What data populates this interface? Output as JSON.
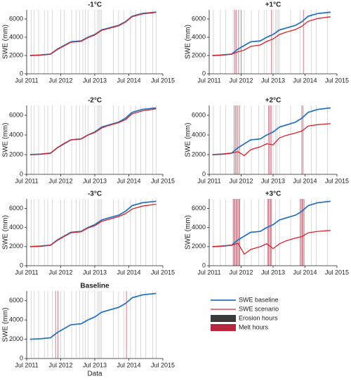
{
  "chart_data": [
    {
      "type": "line",
      "title": "-1°C",
      "ylabel": "SWE (mm)",
      "x": [
        2011.6,
        2011.9,
        2012.2,
        2012.4,
        2012.6,
        2012.8,
        2013.1,
        2013.3,
        2013.5,
        2013.7,
        2013.9,
        2014.2,
        2014.4,
        2014.6,
        2014.9,
        2015.3
      ],
      "baseline": [
        2000,
        2050,
        2150,
        2700,
        3100,
        3500,
        3600,
        4000,
        4300,
        4800,
        5000,
        5300,
        5700,
        6300,
        6600,
        6750
      ],
      "scenario": [
        2000,
        2050,
        2150,
        2650,
        3050,
        3450,
        3550,
        3950,
        4250,
        4750,
        4950,
        5250,
        5650,
        6250,
        6550,
        6720
      ],
      "erosion_hours": [
        2011.63,
        2011.72,
        2011.85,
        2012.02,
        2012.12,
        2012.25,
        2012.5,
        2012.6,
        2012.82,
        2012.95,
        2013.05,
        2013.15,
        2013.22,
        2013.3,
        2013.5,
        2013.58,
        2013.62,
        2013.66,
        2013.7,
        2014.05,
        2014.2,
        2014.35,
        2014.55,
        2014.7,
        2014.85,
        2015.0,
        2015.2,
        2015.3
      ],
      "melt_hours": [],
      "xlim": [
        2011.5,
        2015.5
      ],
      "ylim": [
        0,
        7000
      ],
      "yticks": [
        0,
        2000,
        4000,
        6000
      ],
      "xticks": [
        {
          "value": 2011.5,
          "label": "Jul 2011"
        },
        {
          "value": 2012.5,
          "label": "Jul 2012"
        },
        {
          "value": 2013.5,
          "label": "Jul 2013"
        },
        {
          "value": 2014.5,
          "label": "Jul 2014"
        },
        {
          "value": 2015.5,
          "label": "Jul 2015"
        }
      ]
    },
    {
      "type": "line",
      "title": "+1°C",
      "ylabel": "SWE (mm)",
      "x": [
        2011.6,
        2011.9,
        2012.2,
        2012.4,
        2012.6,
        2012.8,
        2013.1,
        2013.3,
        2013.5,
        2013.7,
        2013.9,
        2014.2,
        2014.4,
        2014.6,
        2014.9,
        2015.3
      ],
      "baseline": [
        2000,
        2050,
        2150,
        2700,
        3100,
        3500,
        3600,
        4000,
        4300,
        4800,
        5000,
        5300,
        5700,
        6300,
        6600,
        6750
      ],
      "scenario": [
        2000,
        2050,
        2150,
        2400,
        2600,
        3000,
        3150,
        3550,
        3800,
        4300,
        4550,
        4850,
        5200,
        5750,
        6050,
        6250
      ],
      "erosion_hours": [
        2011.63,
        2011.85,
        2012.02,
        2012.25,
        2012.6,
        2012.82,
        2013.05,
        2013.22,
        2013.3,
        2013.5,
        2013.58,
        2013.62,
        2013.66,
        2013.7,
        2014.05,
        2014.35,
        2014.7,
        2014.85,
        2015.2
      ],
      "melt_hours": [
        2012.3,
        2012.35,
        2012.42,
        2012.5,
        2013.45,
        2014.45
      ],
      "xlim": [
        2011.5,
        2015.5
      ],
      "ylim": [
        0,
        7000
      ],
      "yticks": [
        0,
        2000,
        4000,
        6000
      ],
      "xticks": [
        {
          "value": 2011.5,
          "label": "Jul 2011"
        },
        {
          "value": 2012.5,
          "label": "Jul 2012"
        },
        {
          "value": 2013.5,
          "label": "Jul 2013"
        },
        {
          "value": 2014.5,
          "label": "Jul 2014"
        },
        {
          "value": 2015.5,
          "label": "Jul 2015"
        }
      ]
    },
    {
      "type": "line",
      "title": "-2°C",
      "ylabel": "SWE (mm)",
      "x": [
        2011.6,
        2011.9,
        2012.2,
        2012.4,
        2012.6,
        2012.8,
        2013.1,
        2013.3,
        2013.5,
        2013.7,
        2013.9,
        2014.2,
        2014.4,
        2014.6,
        2014.9,
        2015.3
      ],
      "baseline": [
        2000,
        2050,
        2150,
        2700,
        3100,
        3500,
        3600,
        4000,
        4300,
        4800,
        5000,
        5300,
        5700,
        6300,
        6600,
        6750
      ],
      "scenario": [
        2000,
        2050,
        2150,
        2700,
        3150,
        3500,
        3600,
        4000,
        4250,
        4700,
        4950,
        5250,
        5550,
        6150,
        6450,
        6650
      ],
      "erosion_hours": [
        2011.63,
        2011.72,
        2011.85,
        2012.02,
        2012.12,
        2012.25,
        2012.5,
        2012.6,
        2012.82,
        2012.95,
        2013.05,
        2013.15,
        2013.22,
        2013.3,
        2013.5,
        2013.58,
        2013.62,
        2013.66,
        2013.7,
        2014.05,
        2014.2,
        2014.35,
        2014.55,
        2014.7,
        2014.85,
        2015.0,
        2015.2,
        2015.3
      ],
      "melt_hours": [],
      "xlim": [
        2011.5,
        2015.5
      ],
      "ylim": [
        0,
        7000
      ],
      "yticks": [
        0,
        2000,
        4000,
        6000
      ],
      "xticks": [
        {
          "value": 2011.5,
          "label": "Jul 2011"
        },
        {
          "value": 2012.5,
          "label": "Jul 2012"
        },
        {
          "value": 2013.5,
          "label": "Jul 2013"
        },
        {
          "value": 2014.5,
          "label": "Jul 2014"
        },
        {
          "value": 2015.5,
          "label": "Jul 2015"
        }
      ]
    },
    {
      "type": "line",
      "title": "+2°C",
      "ylabel": "SWE (mm)",
      "x": [
        2011.6,
        2011.9,
        2012.2,
        2012.4,
        2012.6,
        2012.8,
        2013.1,
        2013.3,
        2013.5,
        2013.7,
        2013.9,
        2014.2,
        2014.4,
        2014.6,
        2014.9,
        2015.3
      ],
      "baseline": [
        2000,
        2050,
        2150,
        2700,
        3100,
        3500,
        3600,
        4000,
        4300,
        4800,
        5000,
        5300,
        5700,
        6300,
        6600,
        6750
      ],
      "scenario": [
        2000,
        2050,
        2150,
        2300,
        1900,
        2500,
        2800,
        3100,
        3000,
        3700,
        3950,
        4200,
        4400,
        4900,
        5050,
        5150
      ],
      "erosion_hours": [
        2011.63,
        2011.85,
        2012.02,
        2012.6,
        2012.82,
        2013.05,
        2013.22,
        2013.5,
        2013.58,
        2013.62,
        2013.7,
        2014.05,
        2014.7,
        2014.85,
        2015.2
      ],
      "melt_hours": [
        2012.28,
        2012.32,
        2012.36,
        2012.4,
        2012.45,
        2013.36,
        2013.4,
        2013.44,
        2014.4,
        2014.44
      ],
      "xlim": [
        2011.5,
        2015.5
      ],
      "ylim": [
        0,
        7000
      ],
      "yticks": [
        0,
        2000,
        4000,
        6000
      ],
      "xticks": [
        {
          "value": 2011.5,
          "label": "Jul 2011"
        },
        {
          "value": 2012.5,
          "label": "Jul 2012"
        },
        {
          "value": 2013.5,
          "label": "Jul 2013"
        },
        {
          "value": 2014.5,
          "label": "Jul 2014"
        },
        {
          "value": 2015.5,
          "label": "Jul 2015"
        }
      ]
    },
    {
      "type": "line",
      "title": "-3°C",
      "ylabel": "SWE (mm)",
      "x": [
        2011.6,
        2011.9,
        2012.2,
        2012.4,
        2012.6,
        2012.8,
        2013.1,
        2013.3,
        2013.5,
        2013.7,
        2013.9,
        2014.2,
        2014.4,
        2014.6,
        2014.9,
        2015.3
      ],
      "baseline": [
        2000,
        2050,
        2150,
        2700,
        3100,
        3500,
        3600,
        4000,
        4300,
        4800,
        5000,
        5300,
        5700,
        6300,
        6600,
        6750
      ],
      "scenario": [
        2000,
        2050,
        2150,
        2650,
        3050,
        3450,
        3550,
        3950,
        4200,
        4650,
        4850,
        5150,
        5450,
        5950,
        6250,
        6450
      ],
      "erosion_hours": [
        2011.63,
        2011.72,
        2011.85,
        2012.02,
        2012.12,
        2012.25,
        2012.5,
        2012.6,
        2012.82,
        2012.95,
        2013.05,
        2013.15,
        2013.22,
        2013.3,
        2013.5,
        2013.58,
        2013.62,
        2013.66,
        2013.7,
        2014.05,
        2014.2,
        2014.35,
        2014.55,
        2014.7,
        2014.85,
        2015.0,
        2015.2,
        2015.3
      ],
      "melt_hours": [],
      "xlim": [
        2011.5,
        2015.5
      ],
      "ylim": [
        0,
        7000
      ],
      "yticks": [
        0,
        2000,
        4000,
        6000
      ],
      "xticks": [
        {
          "value": 2011.5,
          "label": "Jul 2011"
        },
        {
          "value": 2012.5,
          "label": "Jul 2012"
        },
        {
          "value": 2013.5,
          "label": "Jul 2013"
        },
        {
          "value": 2014.5,
          "label": "Jul 2014"
        },
        {
          "value": 2015.5,
          "label": "Jul 2015"
        }
      ]
    },
    {
      "type": "line",
      "title": "+3°C",
      "ylabel": "SWE (mm)",
      "x": [
        2011.6,
        2011.9,
        2012.2,
        2012.4,
        2012.6,
        2012.8,
        2013.1,
        2013.3,
        2013.5,
        2013.7,
        2013.9,
        2014.2,
        2014.4,
        2014.6,
        2014.9,
        2015.3
      ],
      "baseline": [
        2000,
        2050,
        2150,
        2700,
        3100,
        3500,
        3600,
        4000,
        4300,
        4800,
        5000,
        5300,
        5700,
        6300,
        6600,
        6750
      ],
      "scenario": [
        2000,
        2050,
        2150,
        2350,
        1200,
        1700,
        2000,
        2300,
        1800,
        2300,
        2600,
        2900,
        3050,
        3450,
        3600,
        3700
      ],
      "erosion_hours": [
        2011.63,
        2011.85,
        2012.02,
        2012.6,
        2012.82,
        2013.05,
        2013.22,
        2013.58,
        2013.7,
        2014.05,
        2014.7,
        2014.85,
        2015.2
      ],
      "melt_hours": [
        2012.25,
        2012.28,
        2012.31,
        2012.34,
        2012.37,
        2012.4,
        2012.43,
        2012.46,
        2013.33,
        2013.36,
        2013.39,
        2013.42,
        2013.45,
        2014.35,
        2014.38,
        2014.41,
        2014.44,
        2014.47
      ],
      "xlim": [
        2011.5,
        2015.5
      ],
      "ylim": [
        0,
        7000
      ],
      "yticks": [
        0,
        2000,
        4000,
        6000
      ],
      "xticks": [
        {
          "value": 2011.5,
          "label": "Jul 2011"
        },
        {
          "value": 2012.5,
          "label": "Jul 2012"
        },
        {
          "value": 2013.5,
          "label": "Jul 2013"
        },
        {
          "value": 2014.5,
          "label": "Jul 2014"
        },
        {
          "value": 2015.5,
          "label": "Jul 2015"
        }
      ]
    },
    {
      "type": "line",
      "title": "Baseline",
      "ylabel": "SWE (mm)",
      "xlabel": "Data",
      "x": [
        2011.6,
        2011.9,
        2012.2,
        2012.4,
        2012.6,
        2012.8,
        2013.1,
        2013.3,
        2013.5,
        2013.7,
        2013.9,
        2014.2,
        2014.4,
        2014.6,
        2014.9,
        2015.3
      ],
      "baseline": [
        2000,
        2050,
        2150,
        2700,
        3100,
        3500,
        3600,
        4000,
        4300,
        4800,
        5000,
        5300,
        5700,
        6300,
        6600,
        6750
      ],
      "erosion_hours": [
        2011.63,
        2011.72,
        2011.85,
        2012.02,
        2012.12,
        2012.25,
        2012.5,
        2012.6,
        2012.82,
        2012.95,
        2013.05,
        2013.15,
        2013.22,
        2013.3,
        2013.5,
        2013.58,
        2013.62,
        2013.66,
        2013.7,
        2014.05,
        2014.2,
        2014.35,
        2014.55,
        2014.7,
        2014.85,
        2015.0,
        2015.2,
        2015.3
      ],
      "melt_hours": [
        2012.35,
        2012.42,
        2014.43
      ],
      "xlim": [
        2011.5,
        2015.5
      ],
      "ylim": [
        0,
        7000
      ],
      "yticks": [
        0,
        2000,
        4000,
        6000
      ],
      "xticks": [
        {
          "value": 2011.5,
          "label": "Jul 2011"
        },
        {
          "value": 2012.5,
          "label": "Jul 2012"
        },
        {
          "value": 2013.5,
          "label": "Jul 2013"
        },
        {
          "value": 2014.5,
          "label": "Jul 2014"
        },
        {
          "value": 2015.5,
          "label": "Jul 2015"
        }
      ]
    }
  ],
  "legend": {
    "baseline": {
      "label": "SWE baseline",
      "color": "#2a74bb"
    },
    "scenario": {
      "label": "SWE scenario",
      "color": "#d7242c"
    },
    "erosion": {
      "label": "Erosion hours",
      "color": "#3a3a3a"
    },
    "melt": {
      "label": "Melt hours",
      "color": "#b5283f"
    }
  }
}
